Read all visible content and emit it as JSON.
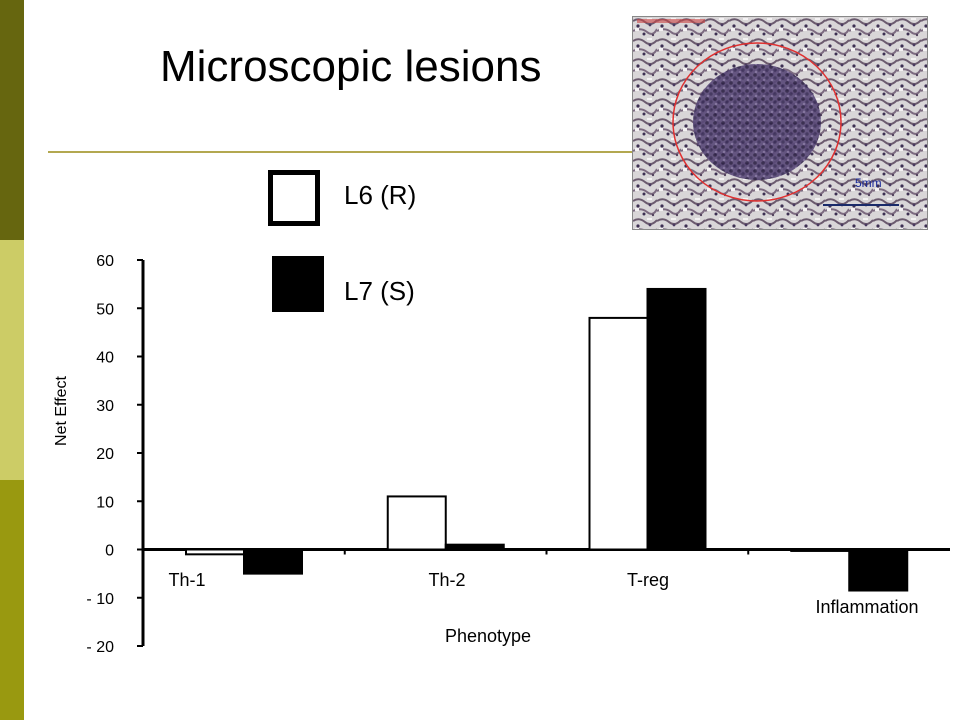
{
  "slide": {
    "title": "Microscopic lesions",
    "photo_scale_label": "5mm",
    "accent_colors": {
      "sidebar_dark": "#66660f",
      "sidebar_light": "#cccc66",
      "sidebar_mid": "#999910",
      "rule": "#b3a850",
      "lesion_circle": "#e03030"
    }
  },
  "chart_data": {
    "type": "bar",
    "categories": [
      "Th-1",
      "Th-2",
      "T-reg",
      "Inflammation"
    ],
    "series": [
      {
        "name": "L6 (R)",
        "fill": "#ffffff",
        "values": [
          -1,
          11,
          48,
          -0.3
        ]
      },
      {
        "name": "L7 (S)",
        "fill": "#000000",
        "values": [
          -5,
          1,
          54,
          -8.5
        ]
      }
    ],
    "xlabel": "Phenotype",
    "ylabel": "Net Effect",
    "ylim": [
      -20,
      60
    ],
    "yticks": [
      60,
      50,
      40,
      30,
      20,
      10,
      0,
      -10,
      -20
    ],
    "ytick_labels": [
      "60",
      "50",
      "40",
      "30",
      "20",
      "10",
      "0",
      "- 10",
      "- 20"
    ],
    "grid": false,
    "legend_position": "top-center"
  }
}
